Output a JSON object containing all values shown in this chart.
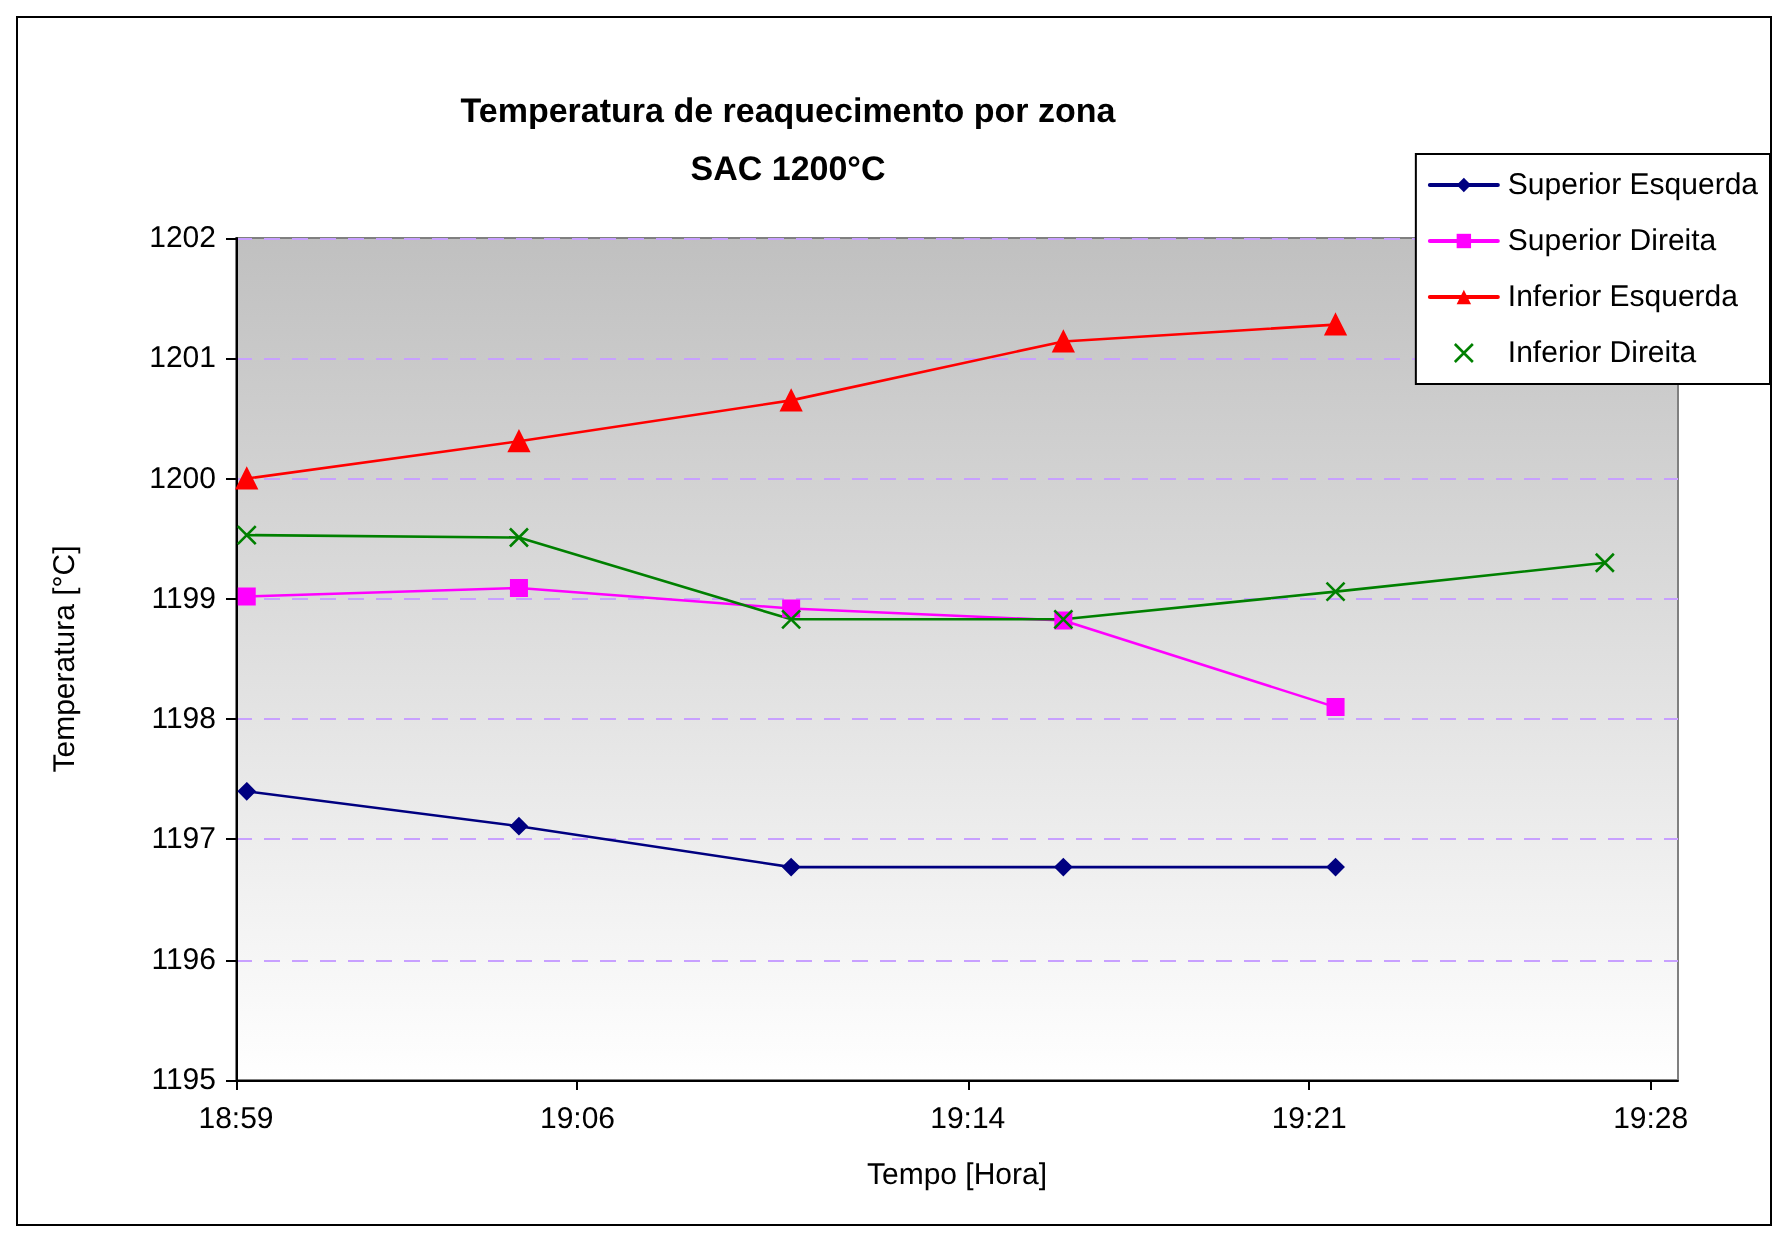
{
  "chart_data": {
    "type": "line",
    "title": "Temperatura de reaquecimento por zona",
    "subtitle": "SAC 1200°C",
    "xlabel": "Tempo [Hora]",
    "ylabel": "Temperatura [°C]",
    "x": [
      18.987,
      19.08,
      19.173,
      19.266,
      19.359,
      19.451
    ],
    "series": [
      {
        "name": "Superior Esquerda",
        "color": "#000080",
        "marker": "diamond",
        "values": [
          1197.4,
          1197.11,
          1196.77,
          1196.77,
          1196.77,
          null
        ]
      },
      {
        "name": "Superior Direita",
        "color": "#ff00ff",
        "marker": "square",
        "values": [
          1199.02,
          1199.09,
          1198.92,
          1198.82,
          1198.1,
          null
        ]
      },
      {
        "name": "Inferior Esquerda",
        "color": "#ff0000",
        "marker": "triangle",
        "values": [
          1200.0,
          1200.31,
          1200.65,
          1201.14,
          1201.28,
          null
        ]
      },
      {
        "name": "Inferior Direita",
        "color": "#008000",
        "marker": "cross",
        "values": [
          1199.53,
          1199.51,
          1198.83,
          1198.83,
          1199.06,
          1199.3
        ]
      }
    ],
    "xlim": [
      18.98333,
      19.476
    ],
    "xticks": [
      {
        "value": 18.98333,
        "label": "18:59"
      },
      {
        "value": 19.1,
        "label": "19:06"
      },
      {
        "value": 19.23333,
        "label": "19:14"
      },
      {
        "value": 19.35,
        "label": "19:21"
      },
      {
        "value": 19.46667,
        "label": "19:28"
      }
    ],
    "ylim": [
      1195,
      1202
    ],
    "yticks": [
      1195,
      1196,
      1197,
      1198,
      1199,
      1200,
      1201,
      1202
    ],
    "grid": "y",
    "legend": "top right",
    "line_style": "solid"
  }
}
